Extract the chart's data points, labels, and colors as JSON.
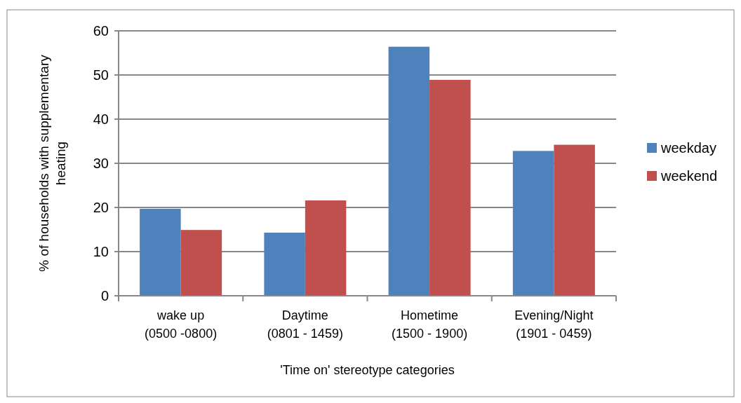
{
  "chart_data": {
    "type": "bar",
    "xlabel": "'Time on' stereotype categories",
    "ylabel": "% of households with supplementary heating",
    "categories": [
      "wake up\n(0500 -0800)",
      "Daytime\n(0801 - 1459)",
      "Hometime\n(1500 - 1900)",
      "Evening/Night\n(1901 - 0459)"
    ],
    "series": [
      {
        "name": "weekday",
        "color": "#4f81bd",
        "values": [
          19.7,
          14.3,
          56.4,
          32.8
        ]
      },
      {
        "name": "weekend",
        "color": "#c0504d",
        "values": [
          14.9,
          21.6,
          48.9,
          34.2
        ]
      }
    ],
    "ylim": [
      0,
      60
    ],
    "yticks": [
      0,
      10,
      20,
      30,
      40,
      50,
      60
    ],
    "grid": "y",
    "legend": "right"
  }
}
